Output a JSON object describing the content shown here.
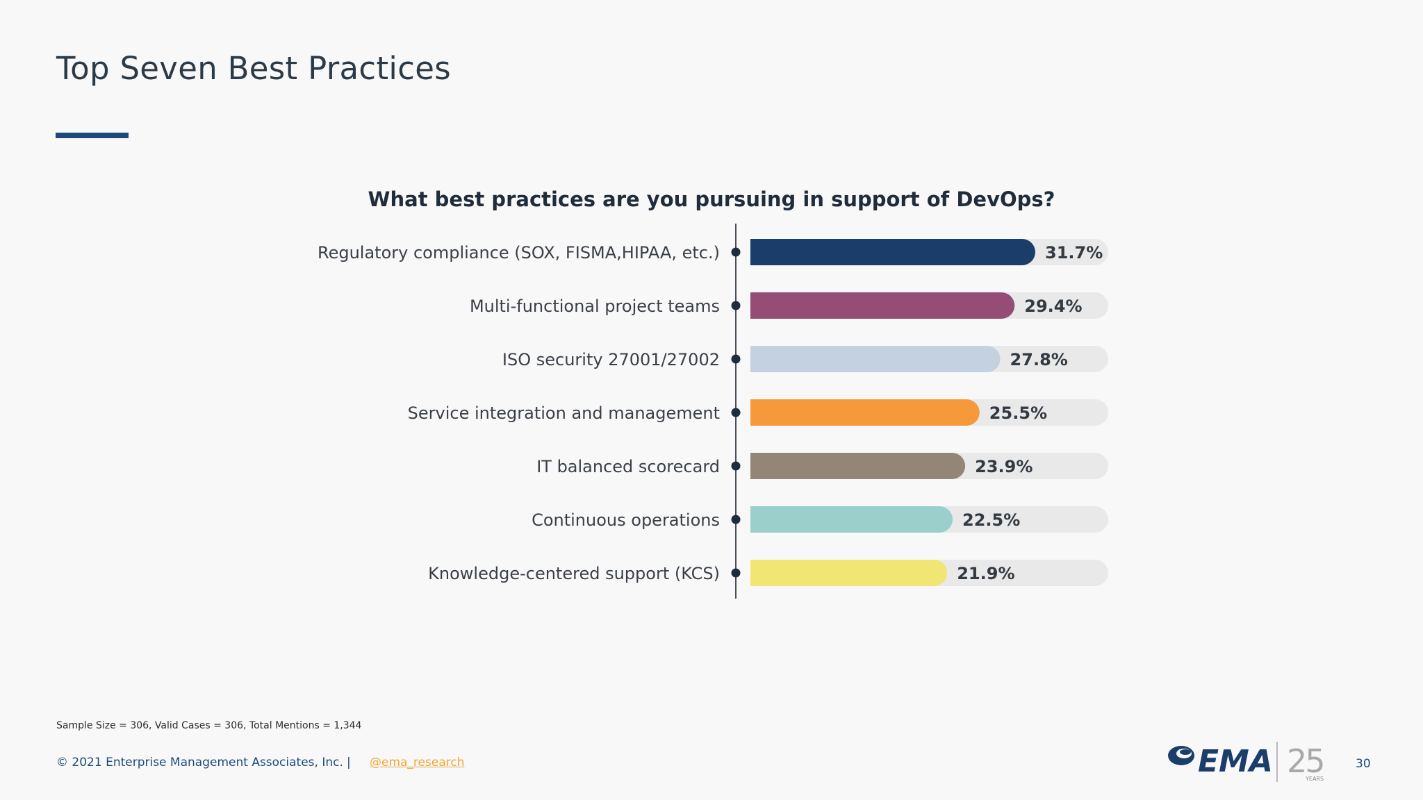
{
  "slide": {
    "title": "Top Seven Best Practices",
    "footnote": "Sample Size = 306, Valid Cases = 306, Total Mentions = 1,344",
    "copyright": "© 2021 Enterprise Management Associates, Inc.",
    "separator": "|",
    "handle": "@ema_research",
    "page_number": "30",
    "logo_text": "EMA",
    "logo_years": "25",
    "logo_years_caption": "YEARS",
    "accent_color": "#1b4a7a"
  },
  "chart_data": {
    "type": "bar",
    "orientation": "horizontal",
    "title": "What best practices are you pursuing in support of DevOps?",
    "categories": [
      "Regulatory compliance (SOX, FISMA,HIPAA, etc.)",
      "Multi-functional project teams",
      "ISO security 27001/27002",
      "Service integration and management",
      "IT balanced scorecard",
      "Continuous operations",
      "Knowledge-centered support (KCS)"
    ],
    "values": [
      31.7,
      29.4,
      27.8,
      25.5,
      23.9,
      22.5,
      21.9
    ],
    "value_labels": [
      "31.7%",
      "29.4%",
      "27.8%",
      "25.5%",
      "23.9%",
      "22.5%",
      "21.9%"
    ],
    "colors": [
      "#1b3d69",
      "#964d75",
      "#c4d1e0",
      "#f5993b",
      "#948676",
      "#9acfcc",
      "#f1e574"
    ],
    "track_color": "#e9e9e9",
    "unit": "%",
    "xlim": [
      0,
      40
    ],
    "grid": false,
    "legend": "none"
  }
}
